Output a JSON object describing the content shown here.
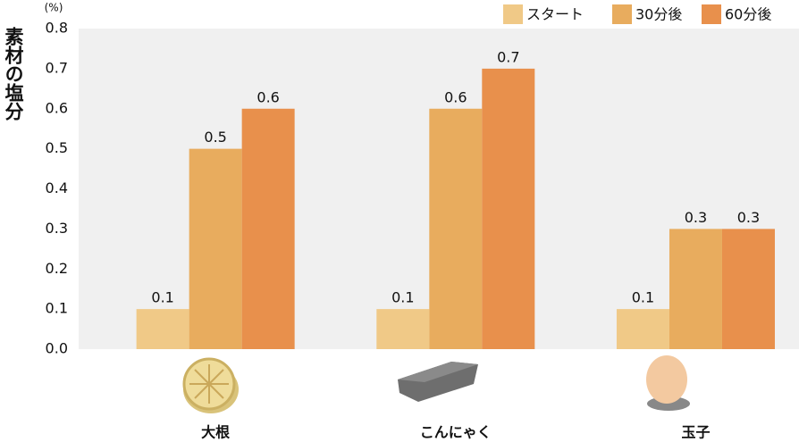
{
  "chart_data": {
    "type": "bar",
    "y_label": "素材の塩分",
    "y_unit": "(%)",
    "categories": [
      "大根",
      "こんにゃく",
      "玉子"
    ],
    "series": [
      {
        "name": "スタート",
        "color": "#f0c987",
        "values": [
          0.1,
          0.1,
          0.1
        ]
      },
      {
        "name": "30分後",
        "color": "#e8ac5e",
        "values": [
          0.5,
          0.6,
          0.3
        ]
      },
      {
        "name": "60分後",
        "color": "#e8904c",
        "values": [
          0.6,
          0.7,
          0.3
        ]
      }
    ],
    "ylim": [
      0,
      0.8
    ],
    "yticks": [
      {
        "value": 0,
        "label": "0.0"
      },
      0.1,
      0.2,
      0.3,
      0.4,
      0.5,
      0.6,
      0.7,
      0.8
    ],
    "grid": false,
    "legend": "top-right"
  }
}
